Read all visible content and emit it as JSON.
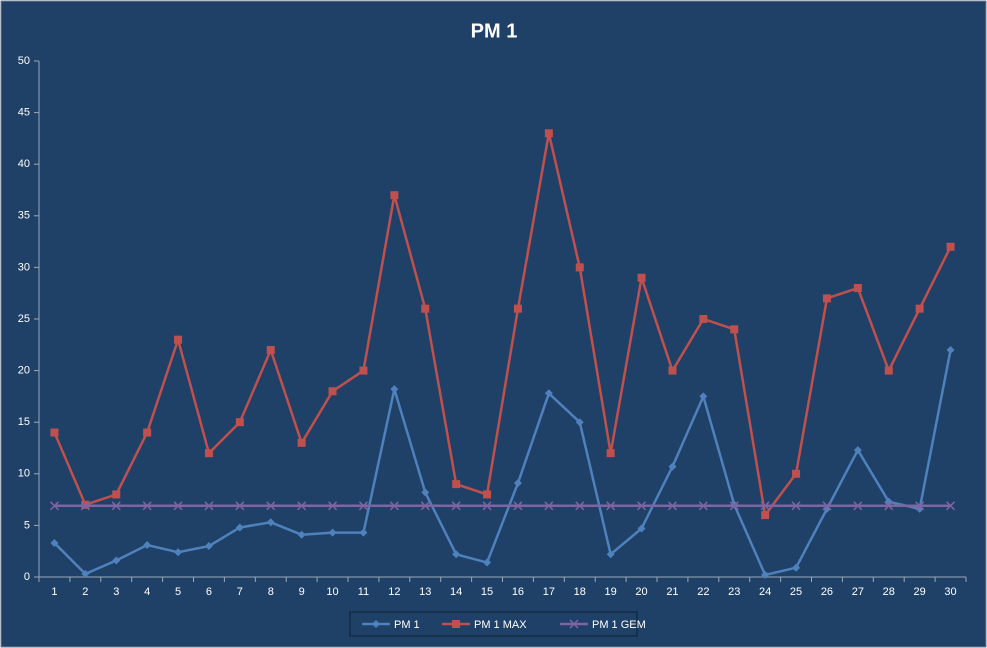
{
  "chart_data": {
    "type": "line",
    "title": "PM 1",
    "categories": [
      "1",
      "2",
      "3",
      "4",
      "5",
      "6",
      "7",
      "8",
      "9",
      "10",
      "11",
      "12",
      "13",
      "14",
      "15",
      "16",
      "17",
      "18",
      "19",
      "20",
      "21",
      "22",
      "23",
      "24",
      "25",
      "26",
      "27",
      "28",
      "29",
      "30"
    ],
    "series": [
      {
        "name": "PM 1",
        "color": "#4f81bd",
        "marker": "diamond",
        "values": [
          3.3,
          0.3,
          1.6,
          3.1,
          2.4,
          3.0,
          4.8,
          5.3,
          4.1,
          4.3,
          4.3,
          18.2,
          8.2,
          2.2,
          1.4,
          9.1,
          17.8,
          15.0,
          2.2,
          4.7,
          10.7,
          17.5,
          7.0,
          0.2,
          0.9,
          6.6,
          12.3,
          7.3,
          6.6,
          22.0
        ]
      },
      {
        "name": "PM 1 MAX",
        "color": "#c0504d",
        "marker": "square",
        "values": [
          14,
          7,
          8,
          14,
          23,
          12,
          15,
          22,
          13,
          18,
          20,
          37,
          26,
          9,
          8,
          26,
          43,
          30,
          12,
          29,
          20,
          25,
          24,
          6,
          10,
          27,
          28,
          20,
          26,
          32
        ]
      },
      {
        "name": "PM 1 GEM",
        "color": "#8064a2",
        "marker": "x",
        "values": [
          6.9,
          6.9,
          6.9,
          6.9,
          6.9,
          6.9,
          6.9,
          6.9,
          6.9,
          6.9,
          6.9,
          6.9,
          6.9,
          6.9,
          6.9,
          6.9,
          6.9,
          6.9,
          6.9,
          6.9,
          6.9,
          6.9,
          6.9,
          6.9,
          6.9,
          6.9,
          6.9,
          6.9,
          6.9,
          6.9
        ]
      }
    ],
    "ylim": [
      0,
      50
    ],
    "yticks": [
      0,
      5,
      10,
      15,
      20,
      25,
      30,
      35,
      40,
      45,
      50
    ],
    "grid": false,
    "legend": "bottom"
  }
}
